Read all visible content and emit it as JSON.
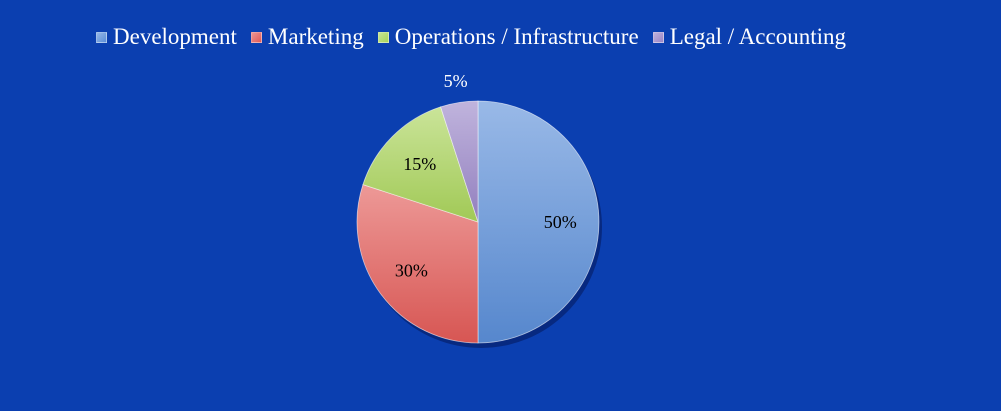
{
  "chart_data": {
    "type": "pie",
    "title": "",
    "categories": [
      "Development",
      "Marketing",
      "Operations / Infrastructure",
      "Legal / Accounting"
    ],
    "values": [
      50,
      30,
      15,
      5
    ],
    "data_labels": [
      "50%",
      "30%",
      "15%",
      "5%"
    ],
    "colors": [
      "#5b8ed8",
      "#e25a57",
      "#a9d45a",
      "#9a86c8"
    ],
    "legend_position": "top",
    "start_angle": "12 o'clock",
    "direction": "clockwise"
  }
}
